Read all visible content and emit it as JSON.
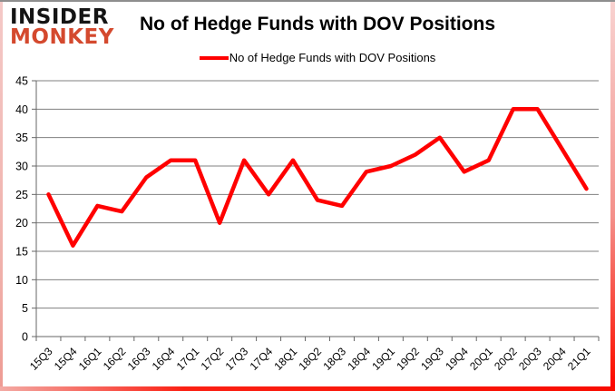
{
  "logo": {
    "line1": "INSIDER",
    "line2": "MONKEY"
  },
  "header": {
    "title": "No of Hedge Funds with DOV Positions"
  },
  "legend": {
    "label": "No of Hedge Funds with DOV Positions"
  },
  "colors": {
    "series_line": "#ff0000",
    "logo_accent": "#d4492e",
    "gridline": "#808080",
    "axis": "#666666",
    "tick_label": "#000000"
  },
  "chart_data": {
    "type": "line",
    "title": "No of Hedge Funds with DOV Positions",
    "categories": [
      "15Q3",
      "15Q4",
      "16Q1",
      "16Q2",
      "16Q3",
      "16Q4",
      "17Q1",
      "17Q2",
      "17Q3",
      "17Q4",
      "18Q1",
      "18Q2",
      "18Q3",
      "18Q4",
      "19Q1",
      "19Q2",
      "19Q3",
      "19Q4",
      "20Q1",
      "20Q2",
      "20Q3",
      "20Q4",
      "21Q1"
    ],
    "series": [
      {
        "name": "No of Hedge Funds with DOV Positions",
        "color": "#ff0000",
        "values": [
          25,
          16,
          23,
          22,
          28,
          31,
          31,
          20,
          31,
          25,
          31,
          24,
          23,
          29,
          30,
          32,
          35,
          29,
          31,
          40,
          40,
          33,
          26
        ]
      }
    ],
    "xlabel": "",
    "ylabel": "",
    "ylim": [
      0,
      45
    ],
    "yticks": [
      0,
      5,
      10,
      15,
      20,
      25,
      30,
      35,
      40,
      45
    ],
    "grid": true,
    "legend_position": "top"
  }
}
